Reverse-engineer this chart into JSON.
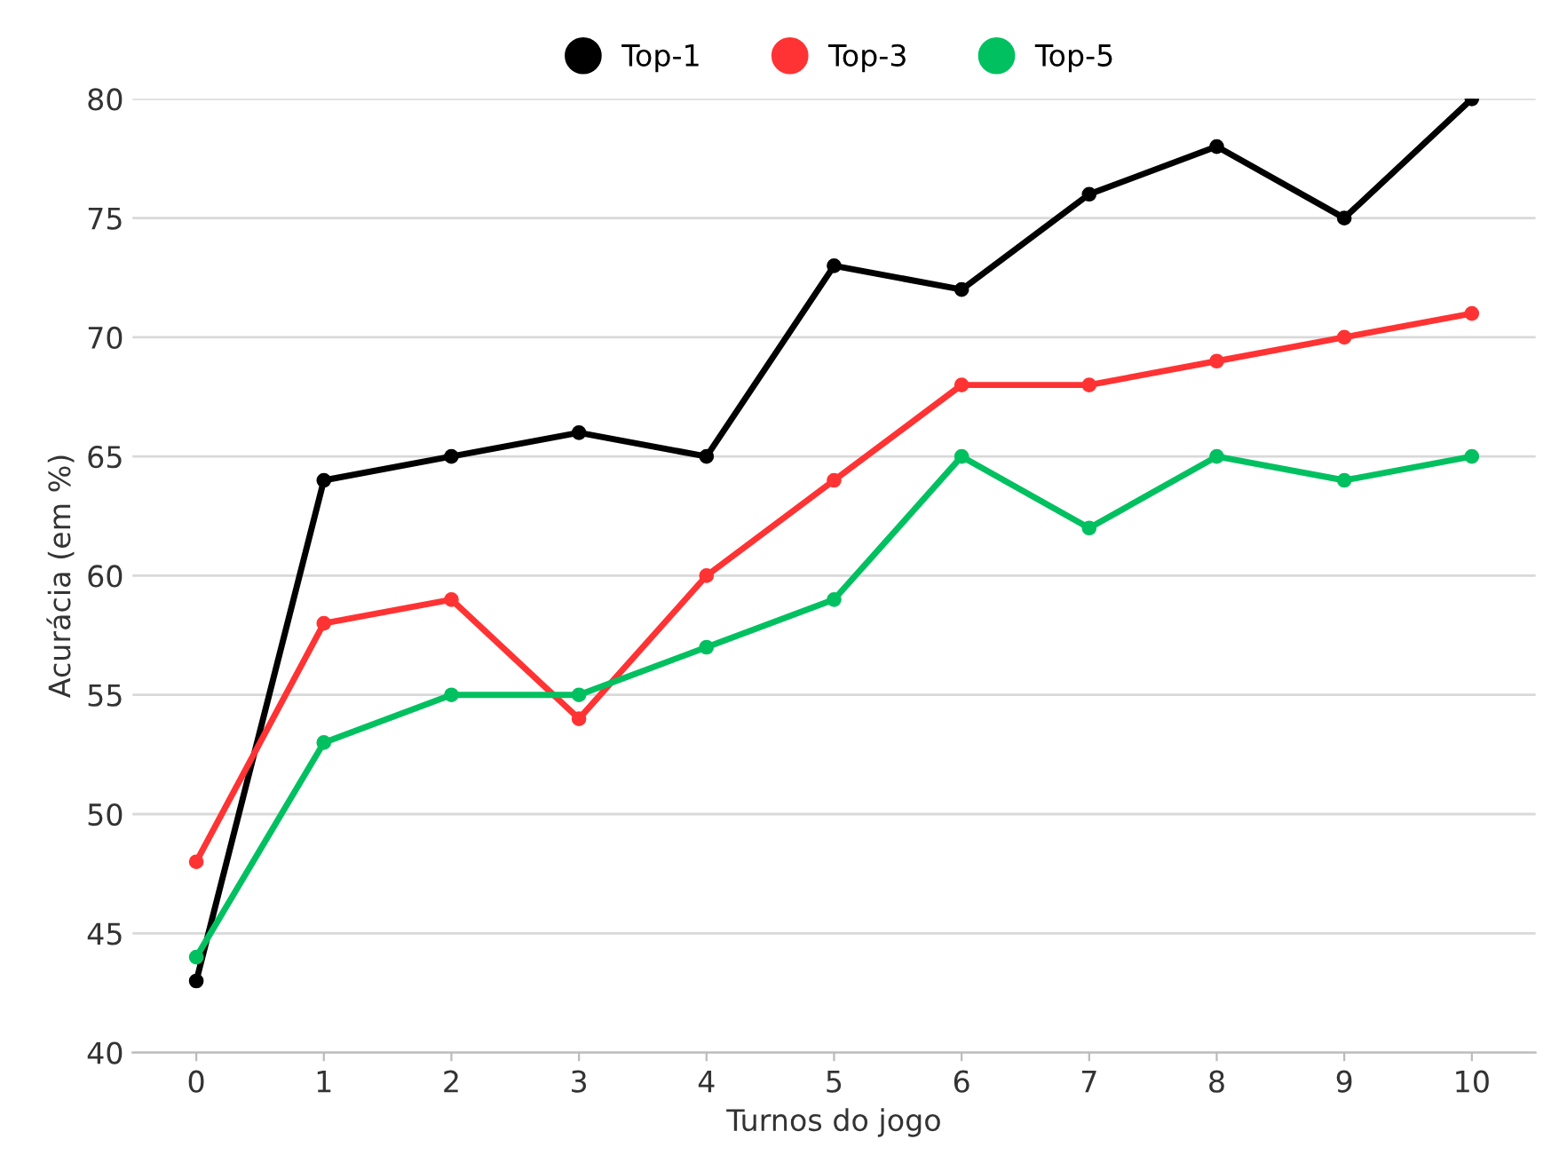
{
  "chart_data": {
    "type": "line",
    "xlabel": "Turnos do jogo",
    "ylabel": "Acurácia (em %)",
    "x": [
      0,
      1,
      2,
      3,
      4,
      5,
      6,
      7,
      8,
      9,
      10
    ],
    "series": [
      {
        "name": "Top-1",
        "color": "#000000",
        "values": [
          43,
          64,
          65,
          66,
          65,
          73,
          72,
          76,
          78,
          75,
          80
        ]
      },
      {
        "name": "Top-3",
        "color": "#ff3333",
        "values": [
          48,
          58,
          59,
          54,
          60,
          64,
          68,
          68,
          69,
          70,
          71
        ]
      },
      {
        "name": "Top-5",
        "color": "#00c060",
        "values": [
          44,
          53,
          55,
          55,
          57,
          59,
          65,
          62,
          65,
          64,
          65
        ]
      }
    ],
    "xlim": [
      -0.5,
      10.5
    ],
    "xticks": [
      0,
      1,
      2,
      3,
      4,
      5,
      6,
      7,
      8,
      9,
      10
    ],
    "ylim": [
      40,
      80
    ],
    "yticks": [
      40,
      45,
      50,
      55,
      60,
      65,
      70,
      75,
      80
    ],
    "grid": "y",
    "legend": "top",
    "marker": "circle",
    "line_style": "solid"
  }
}
